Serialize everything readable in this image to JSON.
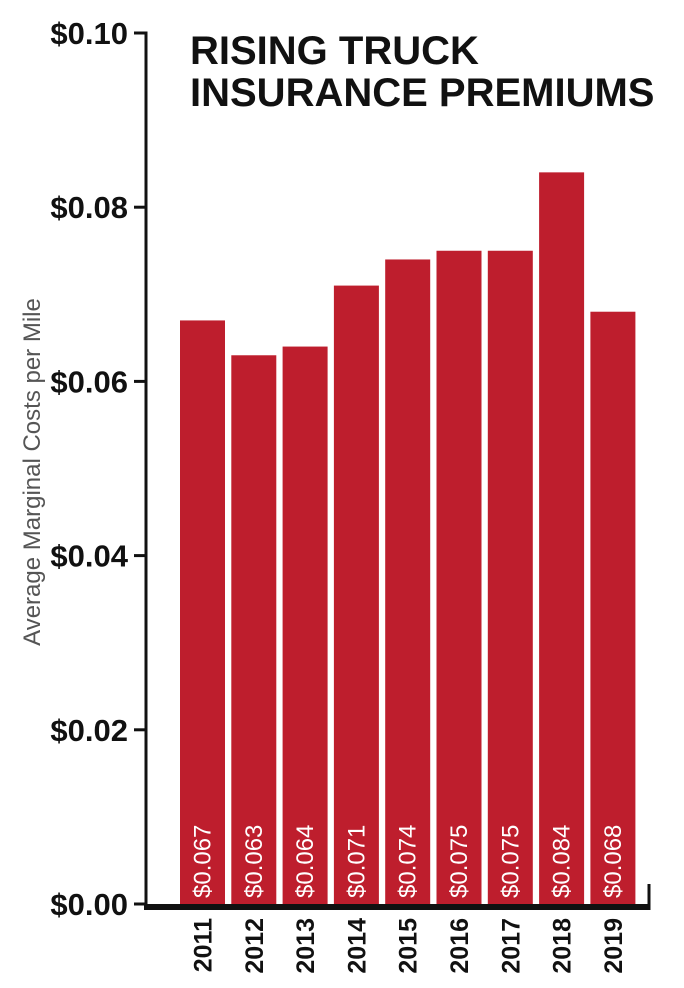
{
  "chart_data": {
    "type": "bar",
    "title": [
      "RISING TRUCK",
      "INSURANCE PREMIUMS"
    ],
    "ylabel": "Average Marginal Costs per Mile",
    "xlabel": "",
    "ylim": [
      0,
      0.1
    ],
    "yticks": [
      {
        "value": 0.0,
        "label": "$0.00"
      },
      {
        "value": 0.02,
        "label": "$0.02"
      },
      {
        "value": 0.04,
        "label": "$0.04"
      },
      {
        "value": 0.06,
        "label": "$0.06"
      },
      {
        "value": 0.08,
        "label": "$0.08"
      },
      {
        "value": 0.1,
        "label": "$0.10"
      }
    ],
    "categories": [
      "2011",
      "2012",
      "2013",
      "2014",
      "2015",
      "2016",
      "2017",
      "2018",
      "2019"
    ],
    "values": [
      0.067,
      0.063,
      0.064,
      0.071,
      0.074,
      0.075,
      0.075,
      0.084,
      0.068
    ],
    "data_labels": [
      "$0.067",
      "$0.063",
      "$0.064",
      "$0.071",
      "$0.074",
      "$0.075",
      "$0.075",
      "$0.084",
      "$0.068"
    ],
    "bar_color": "#be1e2d",
    "axis_color": "#111111",
    "grid": false,
    "legend": "none"
  }
}
